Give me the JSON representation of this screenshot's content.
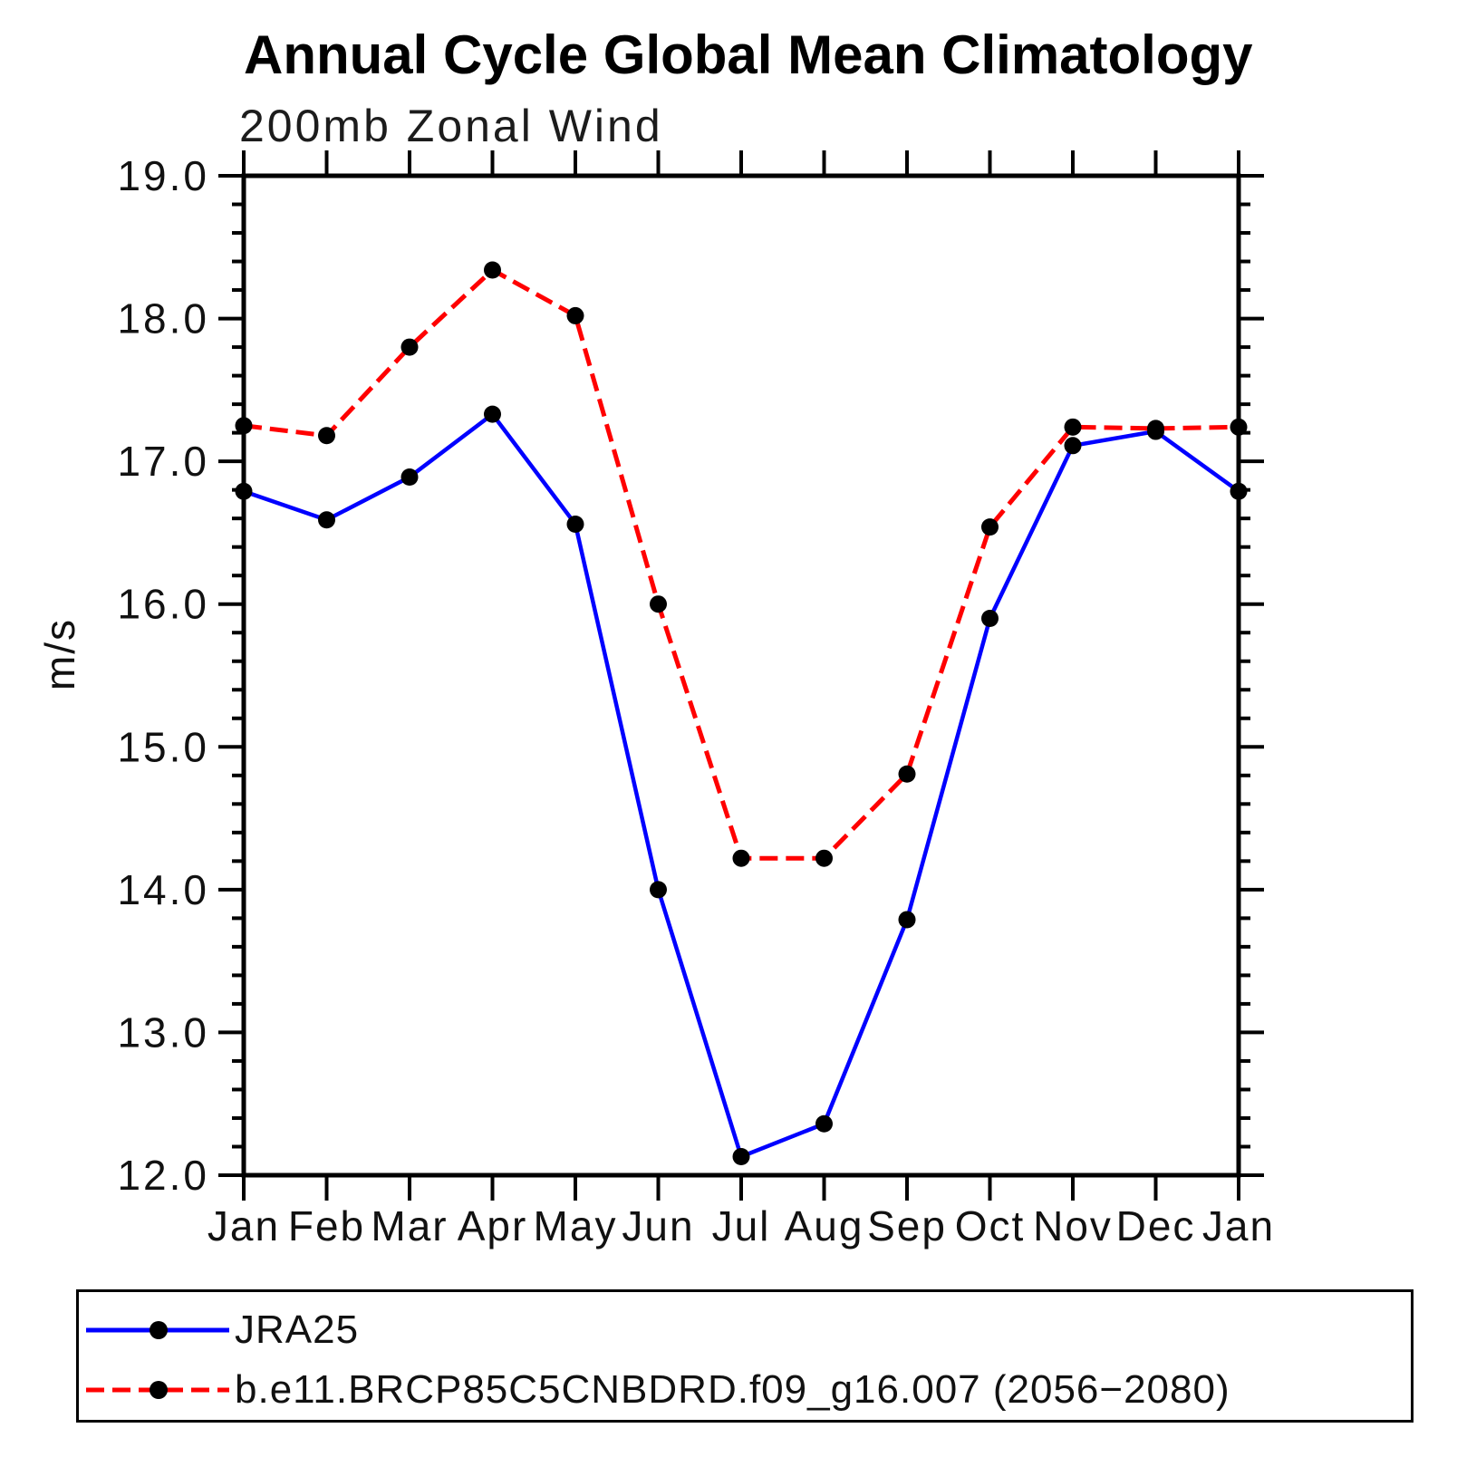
{
  "title": "Annual Cycle Global Mean Climatology",
  "subtitle": "200mb Zonal Wind",
  "ylabel": "m/s",
  "colors": {
    "axis": "#000000",
    "marker": "#000000",
    "series1": "#0000ff",
    "series2": "#ff0000"
  },
  "chart_data": {
    "type": "line",
    "categories": [
      "Jan",
      "Feb",
      "Mar",
      "Apr",
      "May",
      "Jun",
      "Jul",
      "Aug",
      "Sep",
      "Oct",
      "Nov",
      "Dec",
      "Jan"
    ],
    "series": [
      {
        "name": "JRA25",
        "color": "#0000ff",
        "line_style": "solid",
        "marker": "circle",
        "marker_color": "#000000",
        "values": [
          16.79,
          16.59,
          16.89,
          17.33,
          16.56,
          14.0,
          12.13,
          12.36,
          13.79,
          15.9,
          17.11,
          17.21,
          16.79
        ]
      },
      {
        "name": "b.e11.BRCP85C5CNBDRD.f09_g16.007 (2056−2080)",
        "color": "#ff0000",
        "line_style": "dashed",
        "marker": "circle",
        "marker_color": "#000000",
        "values": [
          17.25,
          17.18,
          17.8,
          18.34,
          18.02,
          16.0,
          14.22,
          14.22,
          14.81,
          16.54,
          17.24,
          17.23,
          17.24
        ]
      }
    ],
    "xlabel": "",
    "ylabel": "m/s",
    "ylim": [
      12.0,
      19.0
    ],
    "ytick_major": 1.0,
    "ytick_minor": 0.2,
    "ytick_labels": [
      "12.0",
      "13.0",
      "14.0",
      "15.0",
      "16.0",
      "17.0",
      "18.0",
      "19.0"
    ],
    "grid": false,
    "legend_position": "bottom-left"
  }
}
